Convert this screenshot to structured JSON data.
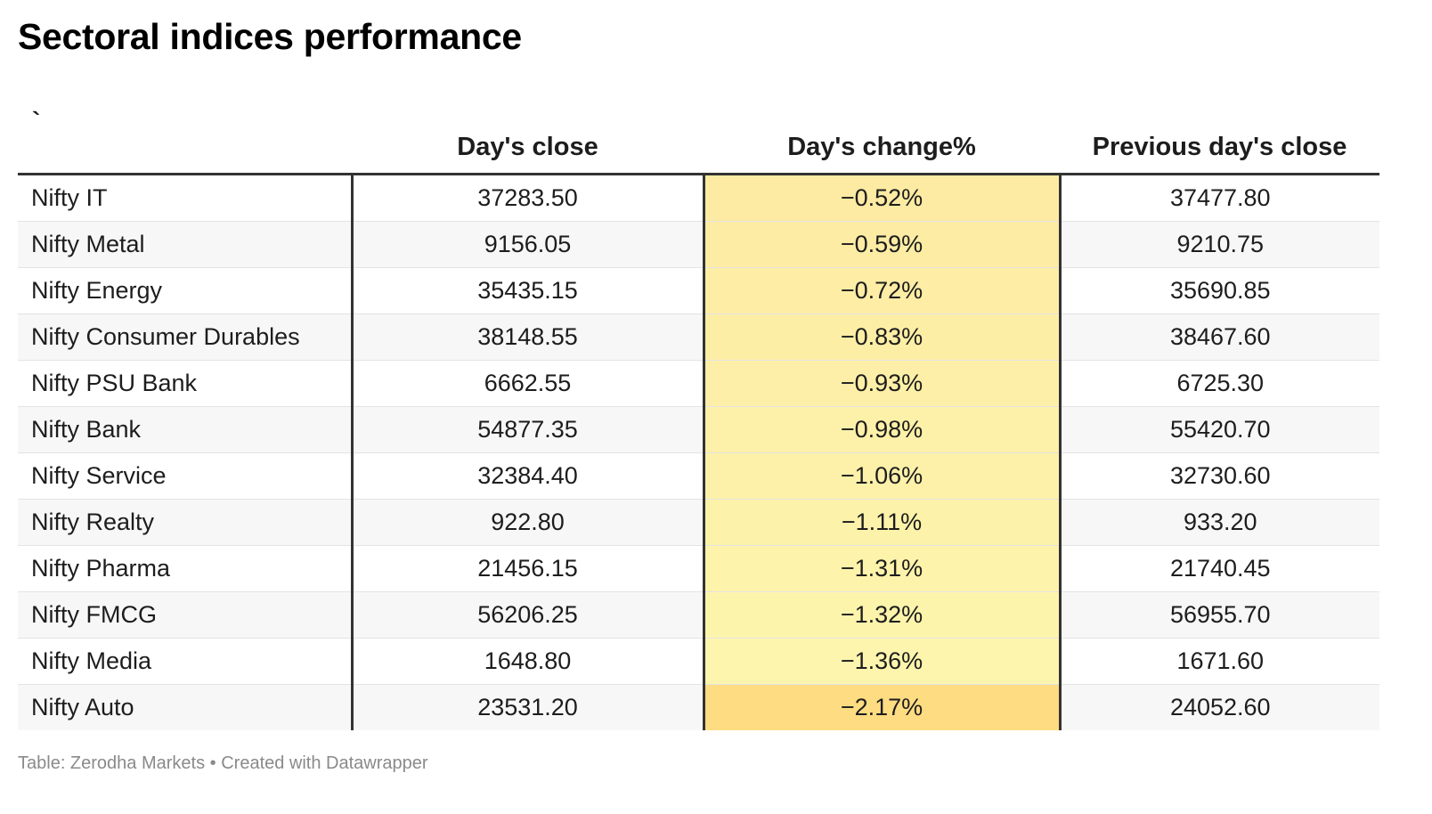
{
  "title": "Sectoral indices performance",
  "footer": "Table: Zerodha Markets • Created with Datawrapper",
  "chart_data": {
    "type": "table",
    "title": "Sectoral indices performance",
    "columns": [
      "`",
      "Day's close",
      "Day's change%",
      "Previous day's close"
    ],
    "rows": [
      {
        "name": "Nifty IT",
        "close": "37283.50",
        "change": "−0.52%",
        "prev": "37477.80",
        "change_value": -0.52,
        "heat": "#fdeba3"
      },
      {
        "name": "Nifty Metal",
        "close": "9156.05",
        "change": "−0.59%",
        "prev": "9210.75",
        "change_value": -0.59,
        "heat": "#fdeca4"
      },
      {
        "name": "Nifty Energy",
        "close": "35435.15",
        "change": "−0.72%",
        "prev": "35690.85",
        "change_value": -0.72,
        "heat": "#fdeda5"
      },
      {
        "name": "Nifty Consumer Durables",
        "close": "38148.55",
        "change": "−0.83%",
        "prev": "38467.60",
        "change_value": -0.83,
        "heat": "#fdeea6"
      },
      {
        "name": "Nifty PSU Bank",
        "close": "6662.55",
        "change": "−0.93%",
        "prev": "6725.30",
        "change_value": -0.93,
        "heat": "#fdefa7"
      },
      {
        "name": "Nifty Bank",
        "close": "54877.35",
        "change": "−0.98%",
        "prev": "55420.70",
        "change_value": -0.98,
        "heat": "#fdf0a8"
      },
      {
        "name": "Nifty Service",
        "close": "32384.40",
        "change": "−1.06%",
        "prev": "32730.60",
        "change_value": -1.06,
        "heat": "#fdf1a9"
      },
      {
        "name": "Nifty Realty",
        "close": "922.80",
        "change": "−1.11%",
        "prev": "933.20",
        "change_value": -1.11,
        "heat": "#fdf2aa"
      },
      {
        "name": "Nifty Pharma",
        "close": "21456.15",
        "change": "−1.31%",
        "prev": "21740.45",
        "change_value": -1.31,
        "heat": "#fdf3ab"
      },
      {
        "name": "Nifty FMCG",
        "close": "56206.25",
        "change": "−1.32%",
        "prev": "56955.70",
        "change_value": -1.32,
        "heat": "#fdf4ac"
      },
      {
        "name": "Nifty Media",
        "close": "1648.80",
        "change": "−1.36%",
        "prev": "1671.60",
        "change_value": -1.36,
        "heat": "#fdf5ad"
      },
      {
        "name": "Nifty Auto",
        "close": "23531.20",
        "change": "−2.17%",
        "prev": "24052.60",
        "change_value": -2.17,
        "heat": "#fedc82"
      }
    ]
  },
  "colors": {
    "header_rule": "#333333",
    "row_alt": "#f7f7f7",
    "footer_text": "#8a8a8a"
  }
}
